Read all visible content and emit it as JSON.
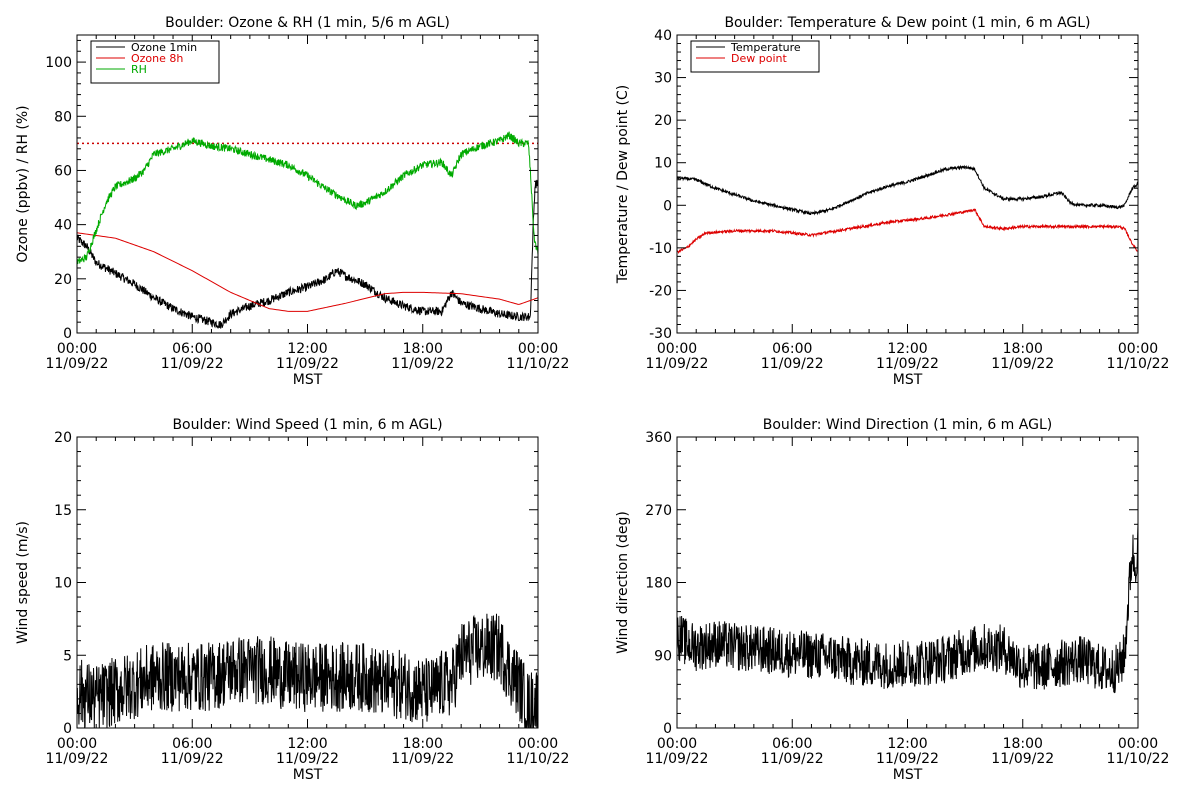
{
  "chart_data": [
    {
      "type": "line",
      "title": "Boulder: Ozone & RH (1 min, 5/6 m AGL)",
      "xlabel": "MST",
      "ylabel": "Ozone (ppbv) / RH (%)",
      "xlim": [
        0,
        24
      ],
      "ylim": [
        0,
        110
      ],
      "x_ticks": [
        {
          "time": "00:00",
          "date": "11/09/22"
        },
        {
          "time": "06:00",
          "date": "11/09/22"
        },
        {
          "time": "12:00",
          "date": "11/09/22"
        },
        {
          "time": "18:00",
          "date": "11/09/22"
        },
        {
          "time": "00:00",
          "date": "11/10/22"
        }
      ],
      "y_ticks": [
        0,
        20,
        40,
        60,
        80,
        100
      ],
      "legend": "top-left",
      "grid": false,
      "reference_line": {
        "y": 70,
        "color": "#cc0000",
        "style": "dotted"
      },
      "series": [
        {
          "name": "Ozone 1min",
          "color": "#000000",
          "noise": 1.6,
          "x": [
            0,
            0.5,
            1,
            2,
            3,
            4,
            5,
            6,
            7,
            7.5,
            8,
            9,
            10,
            11,
            12,
            13,
            13.5,
            14,
            15,
            16,
            17,
            18,
            19,
            19.5,
            20,
            21,
            22,
            23,
            23.6,
            23.75,
            23.85,
            24
          ],
          "y": [
            35,
            32,
            26,
            22,
            18,
            13,
            9,
            6,
            4,
            3,
            7,
            10,
            12,
            15,
            17,
            20,
            23,
            21,
            18,
            13,
            10,
            8,
            8,
            15,
            11,
            9,
            7,
            6,
            6,
            40,
            55,
            55
          ]
        },
        {
          "name": "Ozone 8h",
          "color": "#dd0000",
          "noise": 0,
          "x": [
            0,
            2,
            4,
            6,
            8,
            10,
            11,
            12,
            14,
            16,
            17,
            18,
            20,
            22,
            23,
            24
          ],
          "y": [
            37,
            35,
            30,
            23,
            15,
            9,
            8,
            8,
            11,
            14.5,
            15,
            15,
            14.5,
            12.5,
            10.5,
            13
          ]
        },
        {
          "name": "RH",
          "color": "#00aa00",
          "noise": 1.4,
          "x": [
            0,
            0.5,
            1,
            1.5,
            2,
            3,
            3.5,
            4,
            5,
            6,
            7,
            8,
            9,
            10,
            11,
            12,
            13,
            14,
            14.5,
            15,
            16,
            17,
            18,
            19,
            19.5,
            20,
            21,
            22,
            22.5,
            23,
            23.5,
            23.6,
            23.8,
            24
          ],
          "y": [
            26,
            28,
            38,
            48,
            54,
            57,
            60,
            66,
            68,
            71,
            69,
            68,
            66,
            64,
            62,
            58,
            53,
            49,
            47,
            48,
            52,
            58,
            62,
            63,
            58,
            66,
            69,
            71,
            73,
            70,
            70,
            60,
            35,
            29
          ]
        }
      ]
    },
    {
      "type": "line",
      "title": "Boulder: Temperature & Dew point (1 min, 6 m AGL)",
      "xlabel": "MST",
      "ylabel": "Temperature / Dew point (C)",
      "xlim": [
        0,
        24
      ],
      "ylim": [
        -30,
        40
      ],
      "x_ticks": [
        {
          "time": "00:00",
          "date": "11/09/22"
        },
        {
          "time": "06:00",
          "date": "11/09/22"
        },
        {
          "time": "12:00",
          "date": "11/09/22"
        },
        {
          "time": "18:00",
          "date": "11/09/22"
        },
        {
          "time": "00:00",
          "date": "11/10/22"
        }
      ],
      "y_ticks": [
        -30,
        -20,
        -10,
        0,
        10,
        20,
        30,
        40
      ],
      "legend": "top-left",
      "grid": false,
      "series": [
        {
          "name": "Temperature",
          "color": "#000000",
          "noise": 0.35,
          "x": [
            0,
            1,
            2,
            3,
            4,
            5,
            6,
            7,
            8,
            9,
            10,
            11,
            12,
            13,
            14,
            15,
            15.5,
            16,
            17,
            18,
            19,
            20,
            20.5,
            21,
            22,
            23,
            23.3,
            23.7,
            24
          ],
          "y": [
            6.5,
            6,
            4,
            2.5,
            1,
            0,
            -1,
            -2,
            -1,
            1,
            3,
            4.5,
            5.5,
            7,
            8.5,
            9,
            8.5,
            4,
            1.5,
            1.5,
            2,
            3,
            0.5,
            0,
            0,
            -0.5,
            0,
            4,
            5
          ]
        },
        {
          "name": "Dew point",
          "color": "#dd0000",
          "noise": 0.3,
          "x": [
            0,
            0.5,
            1,
            1.5,
            3,
            5,
            7,
            9,
            11,
            13,
            15,
            15.5,
            16,
            17,
            18,
            20,
            22,
            23,
            23.3,
            23.7,
            24
          ],
          "y": [
            -11,
            -10,
            -8,
            -6.5,
            -6,
            -6,
            -7,
            -5.5,
            -4,
            -3,
            -1.5,
            -1,
            -5,
            -5.5,
            -5,
            -5,
            -5,
            -5,
            -5.5,
            -9,
            -11
          ]
        }
      ]
    },
    {
      "type": "line",
      "title": "Boulder: Wind Speed (1 min, 6 m AGL)",
      "xlabel": "MST",
      "ylabel": "Wind speed (m/s)",
      "xlim": [
        0,
        24
      ],
      "ylim": [
        0,
        20
      ],
      "x_ticks": [
        {
          "time": "00:00",
          "date": "11/09/22"
        },
        {
          "time": "06:00",
          "date": "11/09/22"
        },
        {
          "time": "12:00",
          "date": "11/09/22"
        },
        {
          "time": "18:00",
          "date": "11/09/22"
        },
        {
          "time": "00:00",
          "date": "11/10/22"
        }
      ],
      "y_ticks": [
        0,
        5,
        10,
        15,
        20
      ],
      "legend": "none",
      "grid": false,
      "series": [
        {
          "color": "#000000",
          "noise": 2.4,
          "x": [
            0,
            1,
            2,
            3,
            4,
            5,
            6,
            7,
            8,
            9,
            10,
            11,
            12,
            13,
            14,
            15,
            16,
            17,
            18,
            18.5,
            19,
            19.5,
            20,
            21,
            22,
            22.5,
            23,
            23.5,
            24
          ],
          "y": [
            2.5,
            2,
            2.5,
            3,
            3.5,
            3.5,
            3.5,
            3.5,
            4,
            4,
            4,
            3.5,
            3.5,
            3.5,
            3.5,
            3.5,
            3,
            3,
            2.5,
            2.5,
            3,
            3,
            5,
            5.5,
            5.5,
            4,
            3,
            1.5,
            2
          ]
        }
      ]
    },
    {
      "type": "line",
      "title": "Boulder: Wind Direction (1 min, 6 m AGL)",
      "xlabel": "MST",
      "ylabel": "Wind direction (deg)",
      "xlim": [
        0,
        24
      ],
      "ylim": [
        0,
        360
      ],
      "x_ticks": [
        {
          "time": "00:00",
          "date": "11/09/22"
        },
        {
          "time": "06:00",
          "date": "11/09/22"
        },
        {
          "time": "12:00",
          "date": "11/09/22"
        },
        {
          "time": "18:00",
          "date": "11/09/22"
        },
        {
          "time": "00:00",
          "date": "11/10/22"
        }
      ],
      "y_ticks": [
        0,
        90,
        180,
        270,
        360
      ],
      "legend": "none",
      "grid": false,
      "series": [
        {
          "color": "#000000",
          "noise": 30,
          "x": [
            0,
            0.5,
            1,
            2,
            3,
            4,
            5,
            6,
            7,
            8,
            9,
            10,
            11,
            12,
            13,
            14,
            15,
            16,
            17,
            18,
            19,
            20,
            21,
            22,
            22.5,
            23,
            23.3,
            23.5,
            23.7,
            23.85,
            24
          ],
          "y": [
            115,
            105,
            100,
            105,
            100,
            98,
            95,
            92,
            90,
            88,
            82,
            80,
            78,
            80,
            82,
            85,
            95,
            100,
            98,
            75,
            75,
            80,
            85,
            75,
            70,
            75,
            90,
            160,
            220,
            200,
            230
          ]
        }
      ]
    }
  ]
}
